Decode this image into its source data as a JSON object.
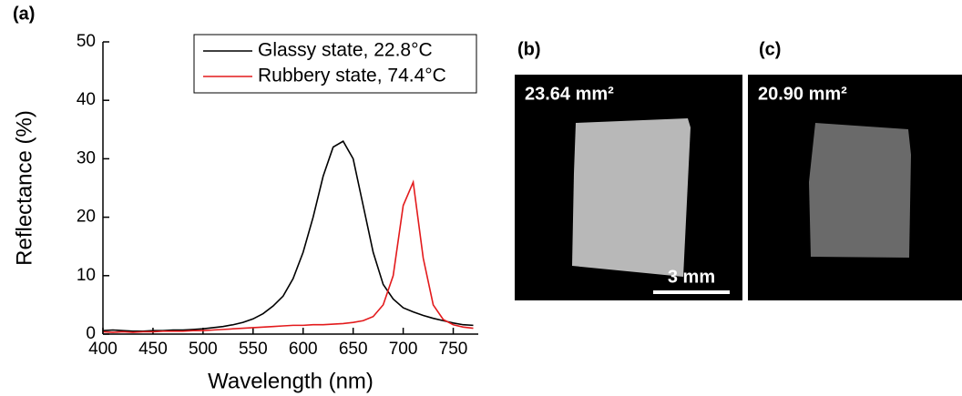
{
  "chart_data": {
    "type": "line",
    "x_label": "Wavelength (nm)",
    "y_label": "Reflectance (%)",
    "x": [
      400,
      410,
      420,
      430,
      440,
      450,
      460,
      470,
      480,
      490,
      500,
      510,
      520,
      530,
      540,
      550,
      560,
      570,
      580,
      590,
      600,
      610,
      620,
      630,
      640,
      650,
      660,
      670,
      680,
      690,
      700,
      710,
      720,
      730,
      740,
      750,
      760,
      770
    ],
    "series": [
      {
        "name": "Glassy state, 22.8°C",
        "color": "#000000",
        "values": [
          0.6,
          0.7,
          0.6,
          0.5,
          0.5,
          0.6,
          0.6,
          0.7,
          0.7,
          0.8,
          0.9,
          1.1,
          1.3,
          1.6,
          2.0,
          2.6,
          3.5,
          4.8,
          6.5,
          9.5,
          14,
          20,
          27,
          32,
          33,
          30,
          22,
          14,
          8.5,
          6,
          4.5,
          3.8,
          3.2,
          2.7,
          2.3,
          1.9,
          1.6,
          1.5
        ]
      },
      {
        "name": "Rubbery state, 74.4°C",
        "color": "#e31a1c",
        "values": [
          0.4,
          0.3,
          0.4,
          0.3,
          0.4,
          0.4,
          0.5,
          0.5,
          0.5,
          0.6,
          0.6,
          0.7,
          0.8,
          0.9,
          1.0,
          1.1,
          1.2,
          1.3,
          1.4,
          1.5,
          1.5,
          1.6,
          1.6,
          1.7,
          1.8,
          2.0,
          2.3,
          3.0,
          5,
          10,
          22,
          26,
          13,
          5,
          2.5,
          1.6,
          1.2,
          1.0
        ]
      }
    ],
    "xlim": [
      400,
      775
    ],
    "xticks": [
      400,
      450,
      500,
      550,
      600,
      650,
      700,
      750
    ],
    "ylim": [
      0,
      50
    ],
    "yticks": [
      0,
      10,
      20,
      30,
      40,
      50
    ],
    "legend": "upper right"
  },
  "panels": {
    "a": "(a)",
    "b": "(b)",
    "c": "(c)",
    "b_area": "23.64 mm²",
    "c_area": "20.90 mm²",
    "scale_bar": "3 mm"
  }
}
